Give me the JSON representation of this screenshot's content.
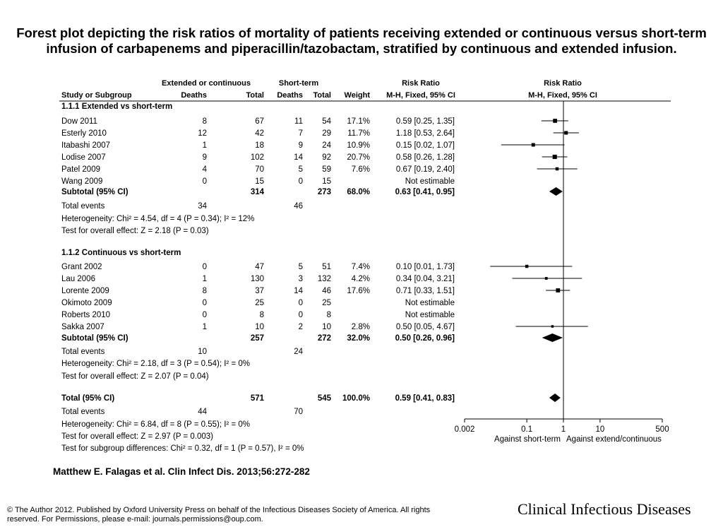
{
  "title": "Forest plot depicting the risk ratios of mortality of patients receiving extended or continuous versus short-term infusion of carbapenems and piperacillin/tazobactam, stratified by continuous and extended infusion.",
  "citation": "Matthew E. Falagas et al. Clin Infect Dis. 2013;56:272-282",
  "copyright": "© The Author 2012. Published by Oxford University Press on behalf of the Infectious Diseases Society of America. All rights reserved. For Permissions, please e-mail: journals.permissions@oup.com.",
  "journal": "Clinical Infectious Diseases",
  "chart_data": {
    "type": "forest",
    "headers": {
      "group1": "Extended or continuous",
      "group2": "Short-term",
      "study": "Study or Subgroup",
      "deaths": "Deaths",
      "total": "Total",
      "weight": "Weight",
      "rr": "Risk Ratio",
      "rr_method": "M-H, Fixed, 95% CI",
      "plot_title": "Risk Ratio",
      "plot_method": "M-H, Fixed, 95% CI"
    },
    "xaxis": {
      "scale": "log",
      "ticks": [
        0.002,
        0.1,
        1,
        10,
        500
      ],
      "tick_labels": [
        "0.002",
        "0.1",
        "1",
        "10",
        "500"
      ],
      "left_label": "Against short-term",
      "right_label": "Against extend/continuous"
    },
    "subgroups": [
      {
        "label": "1.1.1 Extended vs short-term",
        "studies": [
          {
            "name": "Dow 2011",
            "e_deaths": "8",
            "e_total": "67",
            "c_deaths": "11",
            "c_total": "54",
            "weight": "17.1%",
            "rr_text": "0.59 [0.25, 1.35]",
            "rr": 0.59,
            "lo": 0.25,
            "hi": 1.35,
            "w": 17.1
          },
          {
            "name": "Esterly 2010",
            "e_deaths": "12",
            "e_total": "42",
            "c_deaths": "7",
            "c_total": "29",
            "weight": "11.7%",
            "rr_text": "1.18 [0.53, 2.64]",
            "rr": 1.18,
            "lo": 0.53,
            "hi": 2.64,
            "w": 11.7
          },
          {
            "name": "Itabashi 2007",
            "e_deaths": "1",
            "e_total": "18",
            "c_deaths": "9",
            "c_total": "24",
            "weight": "10.9%",
            "rr_text": "0.15 [0.02, 1.07]",
            "rr": 0.15,
            "lo": 0.02,
            "hi": 1.07,
            "w": 10.9
          },
          {
            "name": "Lodise 2007",
            "e_deaths": "9",
            "e_total": "102",
            "c_deaths": "14",
            "c_total": "92",
            "weight": "20.7%",
            "rr_text": "0.58 [0.26, 1.28]",
            "rr": 0.58,
            "lo": 0.26,
            "hi": 1.28,
            "w": 20.7
          },
          {
            "name": "Patel 2009",
            "e_deaths": "4",
            "e_total": "70",
            "c_deaths": "5",
            "c_total": "59",
            "weight": "7.6%",
            "rr_text": "0.67 [0.19, 2.40]",
            "rr": 0.67,
            "lo": 0.19,
            "hi": 2.4,
            "w": 7.6
          },
          {
            "name": "Wang 2009",
            "e_deaths": "0",
            "e_total": "15",
            "c_deaths": "0",
            "c_total": "15",
            "weight": "",
            "rr_text": "Not estimable",
            "rr": null,
            "lo": null,
            "hi": null,
            "w": 0
          }
        ],
        "subtotal": {
          "label": "Subtotal (95% CI)",
          "e_total": "314",
          "c_total": "273",
          "weight": "68.0%",
          "rr_text": "0.63 [0.41, 0.95]",
          "rr": 0.63,
          "lo": 0.41,
          "hi": 0.95
        },
        "events": {
          "label": "Total events",
          "e": "34",
          "c": "46"
        },
        "heterogeneity": "Heterogeneity: Chi² = 4.54, df = 4 (P = 0.34); I² = 12%",
        "overall_effect": "Test for overall effect: Z = 2.18 (P = 0.03)"
      },
      {
        "label": "1.1.2 Continuous vs short-term",
        "studies": [
          {
            "name": "Grant 2002",
            "e_deaths": "0",
            "e_total": "47",
            "c_deaths": "5",
            "c_total": "51",
            "weight": "7.4%",
            "rr_text": "0.10 [0.01, 1.73]",
            "rr": 0.1,
            "lo": 0.01,
            "hi": 1.73,
            "w": 7.4
          },
          {
            "name": "Lau 2006",
            "e_deaths": "1",
            "e_total": "130",
            "c_deaths": "3",
            "c_total": "132",
            "weight": "4.2%",
            "rr_text": "0.34 [0.04, 3.21]",
            "rr": 0.34,
            "lo": 0.04,
            "hi": 3.21,
            "w": 4.2
          },
          {
            "name": "Lorente 2009",
            "e_deaths": "8",
            "e_total": "37",
            "c_deaths": "14",
            "c_total": "46",
            "weight": "17.6%",
            "rr_text": "0.71 [0.33, 1.51]",
            "rr": 0.71,
            "lo": 0.33,
            "hi": 1.51,
            "w": 17.6
          },
          {
            "name": "Okimoto 2009",
            "e_deaths": "0",
            "e_total": "25",
            "c_deaths": "0",
            "c_total": "25",
            "weight": "",
            "rr_text": "Not estimable",
            "rr": null,
            "lo": null,
            "hi": null,
            "w": 0
          },
          {
            "name": "Roberts 2010",
            "e_deaths": "0",
            "e_total": "8",
            "c_deaths": "0",
            "c_total": "8",
            "weight": "",
            "rr_text": "Not estimable",
            "rr": null,
            "lo": null,
            "hi": null,
            "w": 0
          },
          {
            "name": "Sakka 2007",
            "e_deaths": "1",
            "e_total": "10",
            "c_deaths": "2",
            "c_total": "10",
            "weight": "2.8%",
            "rr_text": "0.50 [0.05, 4.67]",
            "rr": 0.5,
            "lo": 0.05,
            "hi": 4.67,
            "w": 2.8
          }
        ],
        "subtotal": {
          "label": "Subtotal (95% CI)",
          "e_total": "257",
          "c_total": "272",
          "weight": "32.0%",
          "rr_text": "0.50 [0.26, 0.96]",
          "rr": 0.5,
          "lo": 0.26,
          "hi": 0.96
        },
        "events": {
          "label": "Total events",
          "e": "10",
          "c": "24"
        },
        "heterogeneity": "Heterogeneity: Chi² = 2.18, df = 3 (P = 0.54); I² = 0%",
        "overall_effect": "Test for overall effect: Z = 2.07 (P = 0.04)"
      }
    ],
    "total": {
      "label": "Total (95% CI)",
      "e_total": "571",
      "c_total": "545",
      "weight": "100.0%",
      "rr_text": "0.59 [0.41, 0.83]",
      "rr": 0.59,
      "lo": 0.41,
      "hi": 0.83
    },
    "total_events": {
      "label": "Total events",
      "e": "44",
      "c": "70"
    },
    "total_heterogeneity": "Heterogeneity: Chi² = 6.84, df = 8 (P = 0.55); I² = 0%",
    "total_overall_effect": "Test for overall effect: Z = 2.97 (P = 0.003)",
    "subgroup_differences": "Test for subgroup differences: Chi² = 0.32, df = 1 (P = 0.57), I² = 0%"
  }
}
